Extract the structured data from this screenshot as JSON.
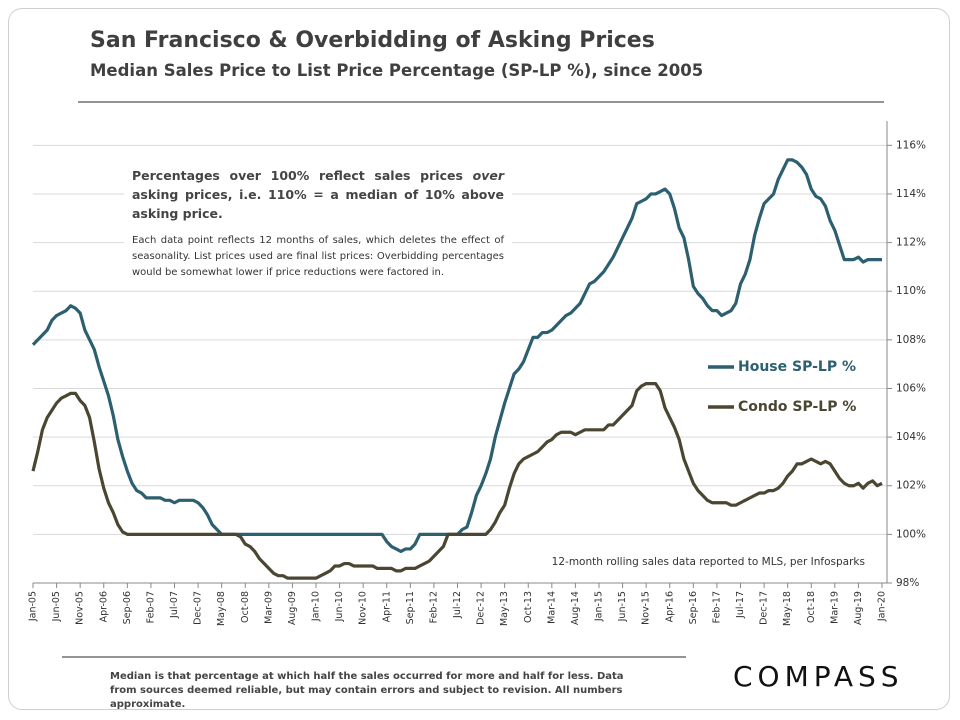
{
  "chart_data": {
    "type": "line",
    "title": "San Francisco & Overbidding of Asking Prices",
    "subtitle": "Median Sales Price to List Price Percentage (SP-LP %), since 2005",
    "annotations": {
      "headline": [
        "Percentages over 100% reflect sales prices ",
        "over",
        " asking prices, i.e. 110% = a median of 10% above asking price."
      ],
      "detail": "Each data point reflects 12 months of sales, which deletes the effect of seasonality. List prices used are final list prices: Overbidding percentages would be somewhat lower if price reductions were factored in.",
      "source": "12-month rolling sales data reported to MLS, per Infosparks"
    },
    "categories": [
      "Jan-05",
      null,
      null,
      null,
      null,
      "Jun-05",
      null,
      null,
      null,
      null,
      "Nov-05",
      null,
      null,
      null,
      null,
      "Apr-06",
      null,
      null,
      null,
      null,
      "Sep-06",
      null,
      null,
      null,
      null,
      "Feb-07",
      null,
      null,
      null,
      null,
      "Jul-07",
      null,
      null,
      null,
      null,
      "Dec-07",
      null,
      null,
      null,
      null,
      "May-08",
      null,
      null,
      null,
      null,
      "Oct-08",
      null,
      null,
      null,
      null,
      "Mar-09",
      null,
      null,
      null,
      null,
      "Aug-09",
      null,
      null,
      null,
      null,
      "Jan-10",
      null,
      null,
      null,
      null,
      "Jun-10",
      null,
      null,
      null,
      null,
      "Nov-10",
      null,
      null,
      null,
      null,
      "Apr-11",
      null,
      null,
      null,
      null,
      "Sep-11",
      null,
      null,
      null,
      null,
      "Feb-12",
      null,
      null,
      null,
      null,
      "Jul-12",
      null,
      null,
      null,
      null,
      "Dec-12",
      null,
      null,
      null,
      null,
      "May-13",
      null,
      null,
      null,
      null,
      "Oct-13",
      null,
      null,
      null,
      null,
      "Mar-14",
      null,
      null,
      null,
      null,
      "Aug-14",
      null,
      null,
      null,
      null,
      "Jan-15",
      null,
      null,
      null,
      null,
      "Jun-15",
      null,
      null,
      null,
      null,
      "Nov-15",
      null,
      null,
      null,
      null,
      "Apr-16",
      null,
      null,
      null,
      null,
      "Sep-16",
      null,
      null,
      null,
      null,
      "Feb-17",
      null,
      null,
      null,
      null,
      "Jul-17",
      null,
      null,
      null,
      null,
      "Dec-17",
      null,
      null,
      null,
      null,
      "May-18",
      null,
      null,
      null,
      null,
      "Oct-18",
      null,
      null,
      null,
      null,
      "Mar-19",
      null,
      null,
      null,
      null,
      "Aug-19",
      null,
      null,
      null,
      null,
      "Jan-20"
    ],
    "series": [
      {
        "name": "House SP-LP %",
        "color": "#2c5f6f",
        "values": [
          107.8,
          108.0,
          108.2,
          108.4,
          108.8,
          109.0,
          109.1,
          109.2,
          109.4,
          109.3,
          109.1,
          108.4,
          108.0,
          107.6,
          106.9,
          106.3,
          105.7,
          104.9,
          103.9,
          103.2,
          102.6,
          102.1,
          101.8,
          101.7,
          101.5,
          101.5,
          101.5,
          101.5,
          101.4,
          101.4,
          101.3,
          101.4,
          101.4,
          101.4,
          101.4,
          101.3,
          101.1,
          100.8,
          100.4,
          100.2,
          100,
          100,
          100,
          100,
          100,
          100,
          100,
          100,
          100,
          100,
          100,
          100,
          100,
          100,
          100,
          100,
          100,
          100,
          100,
          100,
          100,
          100,
          100,
          100,
          100,
          100,
          100,
          100,
          100,
          100,
          100,
          100,
          100,
          100,
          100,
          99.7,
          99.5,
          99.4,
          99.3,
          99.4,
          99.4,
          99.6,
          100,
          100,
          100,
          100,
          100,
          100,
          100,
          100,
          100,
          100.2,
          100.3,
          100.9,
          101.6,
          102.0,
          102.5,
          103.1,
          104.0,
          104.7,
          105.4,
          106.0,
          106.6,
          106.8,
          107.1,
          107.6,
          108.1,
          108.1,
          108.3,
          108.3,
          108.4,
          108.6,
          108.8,
          109.0,
          109.1,
          109.3,
          109.5,
          109.9,
          110.3,
          110.4,
          110.6,
          110.8,
          111.1,
          111.4,
          111.8,
          112.2,
          112.6,
          113.0,
          113.6,
          113.7,
          113.8,
          114.0,
          114.0,
          114.1,
          114.2,
          114.0,
          113.4,
          112.6,
          112.2,
          111.3,
          110.2,
          109.9,
          109.7,
          109.4,
          109.2,
          109.2,
          109.0,
          109.1,
          109.2,
          109.5,
          110.3,
          110.7,
          111.3,
          112.3,
          113.0,
          113.6,
          113.8,
          114.0,
          114.6,
          115.0,
          115.4,
          115.4,
          115.3,
          115.1,
          114.8,
          114.2,
          113.9,
          113.8,
          113.5,
          112.9,
          112.5,
          111.9,
          111.3,
          111.3,
          111.3,
          111.4,
          111.2,
          111.3,
          111.3,
          111.3,
          111.3
        ]
      },
      {
        "name": "Condo SP-LP %",
        "color": "#4a4631",
        "values": [
          102.6,
          103.4,
          104.3,
          104.8,
          105.1,
          105.4,
          105.6,
          105.7,
          105.8,
          105.8,
          105.5,
          105.3,
          104.8,
          103.8,
          102.7,
          101.9,
          101.3,
          100.9,
          100.4,
          100.1,
          100,
          100,
          100,
          100,
          100,
          100,
          100,
          100,
          100,
          100,
          100,
          100,
          100,
          100,
          100,
          100,
          100,
          100,
          100,
          100,
          100,
          100,
          100,
          100,
          99.9,
          99.6,
          99.5,
          99.3,
          99.0,
          98.8,
          98.6,
          98.4,
          98.3,
          98.3,
          98.2,
          98.2,
          98.2,
          98.2,
          98.2,
          98.2,
          98.2,
          98.3,
          98.4,
          98.5,
          98.7,
          98.7,
          98.8,
          98.8,
          98.7,
          98.7,
          98.7,
          98.7,
          98.7,
          98.6,
          98.6,
          98.6,
          98.6,
          98.5,
          98.5,
          98.6,
          98.6,
          98.6,
          98.7,
          98.8,
          98.9,
          99.1,
          99.3,
          99.5,
          100,
          100,
          100,
          100,
          100,
          100,
          100,
          100,
          100,
          100.2,
          100.5,
          100.9,
          101.2,
          101.9,
          102.5,
          102.9,
          103.1,
          103.2,
          103.3,
          103.4,
          103.6,
          103.8,
          103.9,
          104.1,
          104.2,
          104.2,
          104.2,
          104.1,
          104.2,
          104.3,
          104.3,
          104.3,
          104.3,
          104.3,
          104.5,
          104.5,
          104.7,
          104.9,
          105.1,
          105.3,
          105.9,
          106.1,
          106.2,
          106.2,
          106.2,
          105.9,
          105.2,
          104.8,
          104.4,
          103.9,
          103.1,
          102.6,
          102.1,
          101.8,
          101.6,
          101.4,
          101.3,
          101.3,
          101.3,
          101.3,
          101.2,
          101.2,
          101.3,
          101.4,
          101.5,
          101.6,
          101.7,
          101.7,
          101.8,
          101.8,
          101.9,
          102.1,
          102.4,
          102.6,
          102.9,
          102.9,
          103.0,
          103.1,
          103.0,
          102.9,
          103.0,
          102.9,
          102.6,
          102.3,
          102.1,
          102.0,
          102.0,
          102.1,
          101.9,
          102.1,
          102.2,
          102.0,
          102.1
        ]
      }
    ],
    "ylim": [
      98,
      117
    ],
    "yticks": [
      {
        "value": 98,
        "label": "98%"
      },
      {
        "value": 100,
        "label": "100%"
      },
      {
        "value": 102,
        "label": "102%"
      },
      {
        "value": 104,
        "label": "104%"
      },
      {
        "value": 106,
        "label": "106%"
      },
      {
        "value": 108,
        "label": "108%"
      },
      {
        "value": 110,
        "label": "110%"
      },
      {
        "value": 112,
        "label": "112%"
      },
      {
        "value": 114,
        "label": "114%"
      },
      {
        "value": 116,
        "label": "116%"
      }
    ],
    "y_axis_side": "right",
    "grid": true,
    "legend": "center right"
  },
  "footer": {
    "note": "Median is that percentage at which half the sales occurred for more and half for less. Data from sources deemed reliable, but may contain errors and subject to revision. All numbers approximate.",
    "logo": "COMPASS"
  }
}
